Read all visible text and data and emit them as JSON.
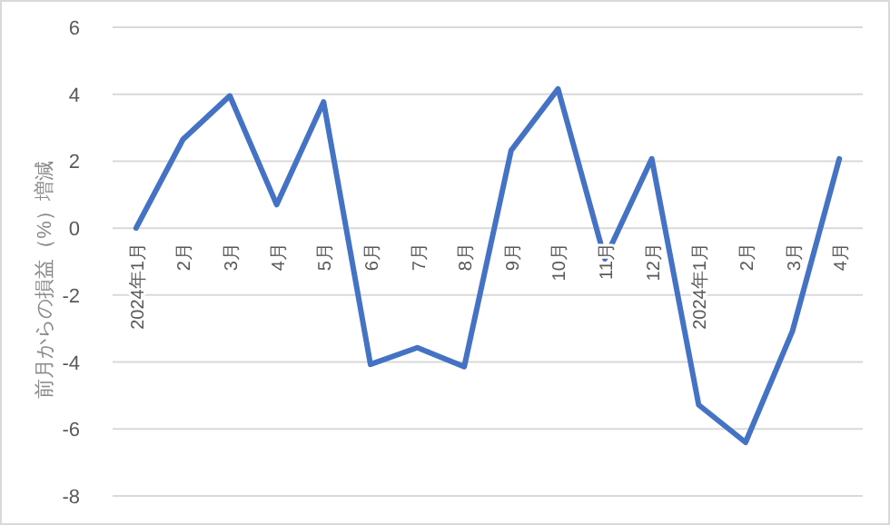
{
  "chart_data": {
    "type": "line",
    "ylabel": "前月からの損益（%）増減",
    "categories": [
      "2024年1月",
      "2月",
      "3月",
      "4月",
      "5月",
      "6月",
      "7月",
      "8月",
      "9月",
      "10月",
      "11月",
      "12月",
      "2024年1月",
      "2月",
      "3月",
      "4月"
    ],
    "series": [
      {
        "color": "#4472c4",
        "values": [
          0,
          2.65,
          3.95,
          0.7,
          3.77,
          -4.07,
          -3.57,
          -4.14,
          2.32,
          4.16,
          -0.92,
          2.07,
          -5.28,
          -6.4,
          -3.08,
          2.07
        ]
      }
    ],
    "ylim": [
      -8,
      6
    ],
    "yticks": [
      -8,
      -6,
      -4,
      -2,
      0,
      2,
      4,
      6
    ],
    "grid": "y",
    "marker": "none",
    "line_style": "solid"
  }
}
